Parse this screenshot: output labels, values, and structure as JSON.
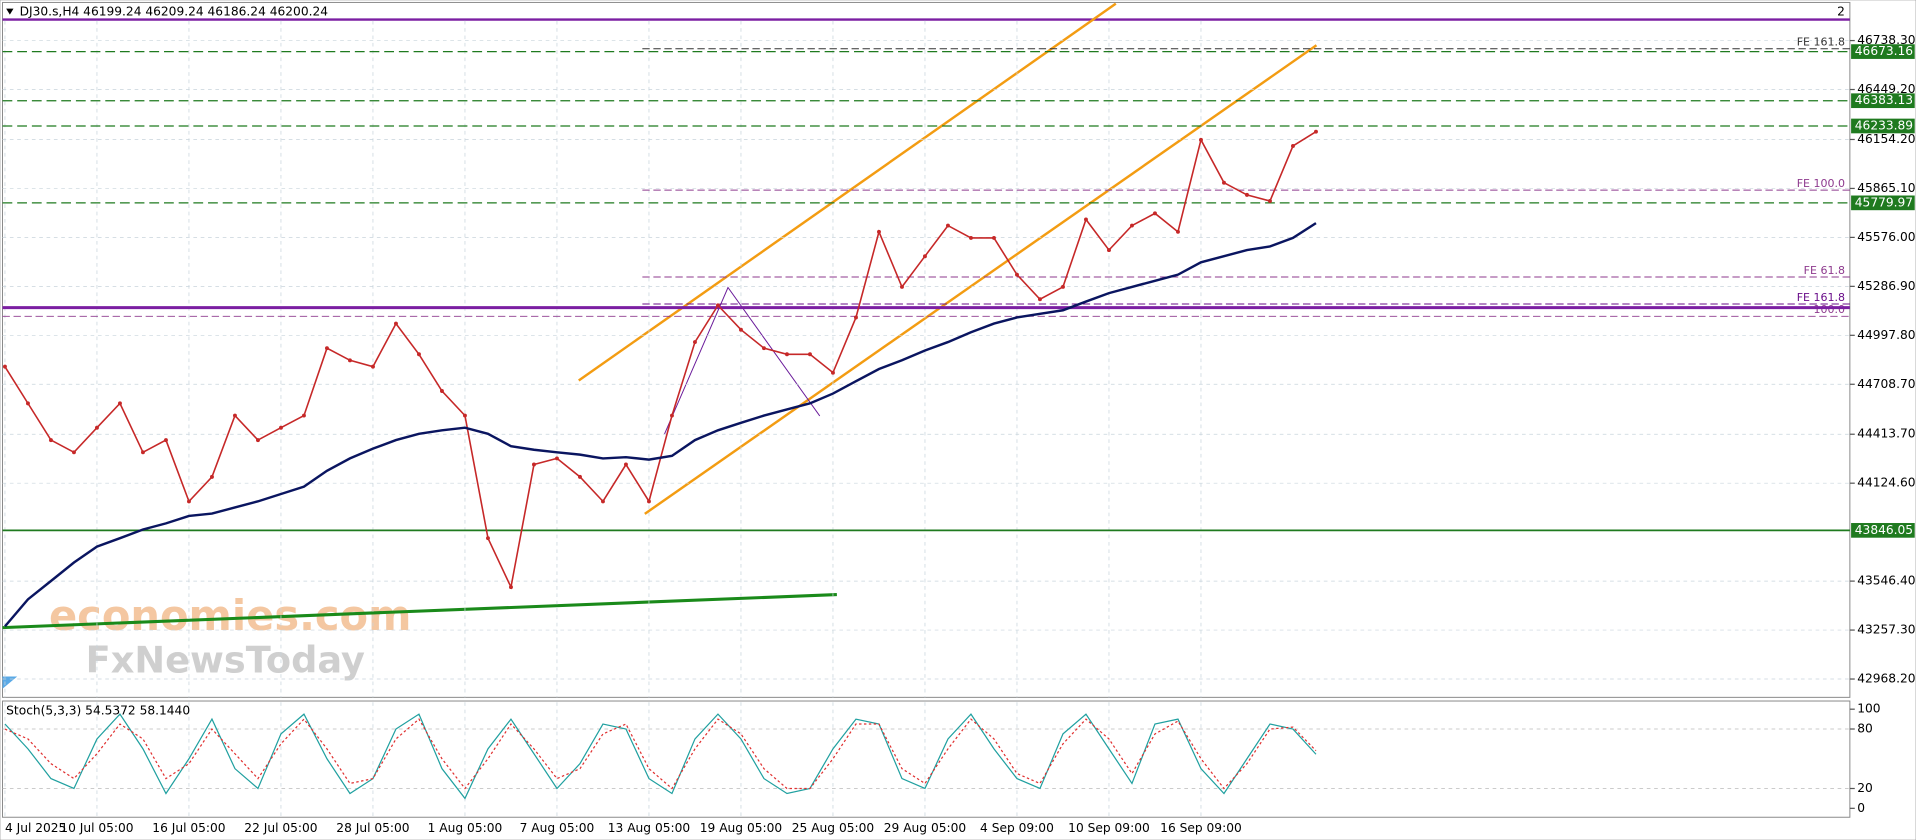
{
  "chart_data": {
    "type": "line",
    "title": "DJ30.s,H4  46199.24 46209.24 46186.24 46200.24",
    "corner_label": "2",
    "categories": [
      "4 Jul 2025",
      null,
      null,
      null,
      "10 Jul 05:00",
      null,
      null,
      null,
      "16 Jul 05:00",
      null,
      null,
      null,
      "22 Jul 05:00",
      null,
      null,
      null,
      "28 Jul 05:00",
      null,
      null,
      null,
      "1 Aug 05:00",
      null,
      null,
      null,
      "7 Aug 05:00",
      null,
      null,
      null,
      "13 Aug 05:00",
      null,
      null,
      null,
      "19 Aug 05:00",
      null,
      null,
      null,
      "25 Aug 05:00",
      null,
      null,
      null,
      "29 Aug 05:00",
      null,
      null,
      null,
      "4 Sep 09:00",
      null,
      null,
      null,
      "10 Sep 09:00",
      null,
      null,
      null,
      "16 Sep 09:00",
      null,
      null,
      null,
      null,
      null
    ],
    "series": [
      {
        "color": "#c62828",
        "values": [
          44813,
          44596,
          44379,
          44307,
          44452,
          44596,
          44307,
          44379,
          44017,
          44162,
          44524,
          44379,
          44452,
          44524,
          44922,
          44850,
          44813,
          45067,
          44886,
          44669,
          44524,
          43800,
          43511,
          44235,
          44271,
          44162,
          44017,
          44235,
          44017,
          44524,
          44958,
          45175,
          45031,
          44922,
          44886,
          44886,
          44777,
          45103,
          45609,
          45284,
          45465,
          45646,
          45573,
          45573,
          45356,
          45211,
          45284,
          45682,
          45501,
          45646,
          45718,
          45609,
          46152,
          45899,
          45827,
          45791,
          46116,
          46200.24
        ]
      },
      {
        "color": "#0a1560",
        "values": [
          43279,
          43439,
          43547,
          43656,
          43750,
          43800,
          43851,
          43887,
          43931,
          43945,
          43981,
          44017,
          44061,
          44104,
          44198,
          44271,
          44329,
          44379,
          44416,
          44437,
          44452,
          44416,
          44343,
          44322,
          44307,
          44293,
          44271,
          44278,
          44264,
          44286,
          44379,
          44437,
          44481,
          44524,
          44560,
          44596,
          44654,
          44727,
          44799,
          44850,
          44908,
          44958,
          45016,
          45067,
          45103,
          45125,
          45146,
          45197,
          45247,
          45284,
          45320,
          45356,
          45429,
          45465,
          45501,
          45523,
          45573,
          45660
        ]
      }
    ],
    "ylim": [
      42860,
      46855
    ],
    "yticks": [
      {
        "value": 46738.3,
        "label": "46738.30"
      },
      {
        "value": 46449.2,
        "label": "46449.20"
      },
      {
        "value": 46154.2,
        "label": "46154.20"
      },
      {
        "value": 45865.1,
        "label": "45865.10"
      },
      {
        "value": 45576,
        "label": "45576.00"
      },
      {
        "value": 45286.9,
        "label": "45286.90"
      },
      {
        "value": 44997.8,
        "label": "44997.80"
      },
      {
        "value": 44708.7,
        "label": "44708.70"
      },
      {
        "value": 44413.7,
        "label": "44413.70"
      },
      {
        "value": 44124.6,
        "label": "44124.60"
      },
      {
        "value": 43546.4,
        "label": "43546.40"
      },
      {
        "value": 43257.3,
        "label": "43257.30"
      },
      {
        "value": 42968.2,
        "label": "42968.20"
      }
    ],
    "grid": true,
    "levels": [
      {
        "value": 46673.16,
        "color": "#1f7a1f",
        "style": "dashed"
      },
      {
        "value": 46383.13,
        "color": "#1f7a1f",
        "style": "dashed"
      },
      {
        "value": 46233.89,
        "color": "#1f7a1f",
        "style": "dashed"
      },
      {
        "value": 45779.97,
        "color": "#1f7a1f",
        "style": "dashed"
      },
      {
        "value": 43846.05,
        "color": "#1f7a1f",
        "style": "solid"
      }
    ],
    "fib_levels": [
      {
        "label": "FE 161.8",
        "value": 46690,
        "color": "#333333"
      },
      {
        "label": "FE 100.0",
        "value": 45855,
        "color": "#8e3a8e"
      },
      {
        "label": "FE 61.8",
        "value": 45342,
        "color": "#8e3a8e"
      },
      {
        "label": "FE 161.8",
        "value": 45183,
        "color": "#6a0d8a"
      },
      {
        "label": "100.0",
        "value": 45110,
        "color": "#8e3a8e"
      }
    ],
    "watermark": [
      "economies.com",
      "FxNewsToday"
    ],
    "indicator": {
      "title": "Stoch(5,3,3) 54.5372 58.1440",
      "ylim": [
        -9,
        107
      ],
      "yticks": [
        100,
        80,
        20,
        0
      ],
      "series": [
        {
          "color": "#20a0a0",
          "values": [
            85,
            60,
            30,
            20,
            70,
            95,
            60,
            15,
            50,
            90,
            40,
            20,
            75,
            95,
            50,
            15,
            30,
            80,
            95,
            40,
            10,
            60,
            90,
            55,
            20,
            45,
            85,
            80,
            30,
            15,
            70,
            95,
            70,
            30,
            15,
            20,
            60,
            90,
            85,
            30,
            20,
            70,
            95,
            60,
            30,
            20,
            75,
            95,
            60,
            25,
            85,
            90,
            40,
            15,
            50,
            85,
            80,
            54.5372
          ]
        },
        {
          "color": "#e03030",
          "values": [
            80,
            70,
            45,
            30,
            55,
            85,
            70,
            30,
            45,
            80,
            55,
            30,
            65,
            90,
            60,
            25,
            30,
            70,
            90,
            50,
            20,
            50,
            85,
            60,
            30,
            40,
            75,
            85,
            40,
            20,
            60,
            90,
            75,
            40,
            20,
            20,
            50,
            85,
            85,
            40,
            25,
            60,
            90,
            70,
            35,
            25,
            65,
            90,
            70,
            35,
            75,
            88,
            50,
            20,
            45,
            80,
            82,
            58.144
          ]
        }
      ]
    }
  }
}
